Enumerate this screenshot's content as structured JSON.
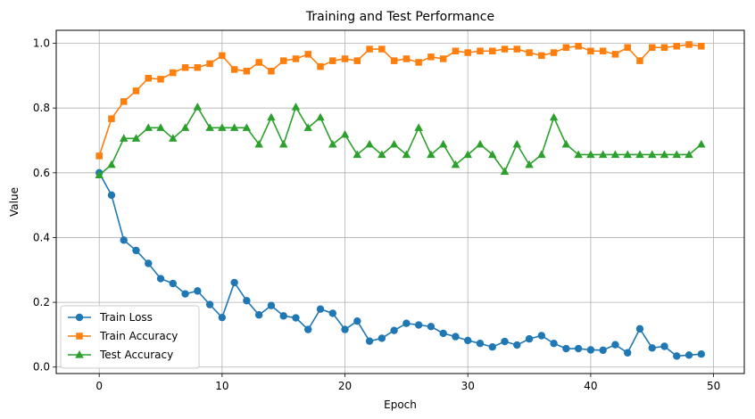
{
  "chart_data": {
    "type": "line",
    "title": "Training and Test Performance",
    "xlabel": "Epoch",
    "ylabel": "Value",
    "xlim": [
      -3.5,
      52.5
    ],
    "ylim": [
      -0.02,
      1.04
    ],
    "xticks": [
      0,
      10,
      20,
      30,
      40,
      50
    ],
    "yticks": [
      0.0,
      0.2,
      0.4,
      0.6,
      0.8,
      1.0
    ],
    "xtick_labels": [
      "0",
      "10",
      "20",
      "30",
      "40",
      "50"
    ],
    "ytick_labels": [
      "0.0",
      "0.2",
      "0.4",
      "0.6",
      "0.8",
      "1.0"
    ],
    "grid": true,
    "legend_position": "lower-left",
    "x": [
      0,
      1,
      2,
      3,
      4,
      5,
      6,
      7,
      8,
      9,
      10,
      11,
      12,
      13,
      14,
      15,
      16,
      17,
      18,
      19,
      20,
      21,
      22,
      23,
      24,
      25,
      26,
      27,
      28,
      29,
      30,
      31,
      32,
      33,
      34,
      35,
      36,
      37,
      38,
      39,
      40,
      41,
      42,
      43,
      44,
      45,
      46,
      47,
      48,
      49
    ],
    "series": [
      {
        "name": "Train Loss",
        "color": "#1f77b4",
        "marker": "circle",
        "values": [
          0.6,
          0.531,
          0.392,
          0.36,
          0.32,
          0.273,
          0.258,
          0.226,
          0.235,
          0.193,
          0.153,
          0.261,
          0.205,
          0.161,
          0.19,
          0.158,
          0.152,
          0.116,
          0.179,
          0.166,
          0.116,
          0.142,
          0.08,
          0.089,
          0.113,
          0.135,
          0.13,
          0.125,
          0.104,
          0.094,
          0.082,
          0.073,
          0.062,
          0.079,
          0.068,
          0.087,
          0.097,
          0.073,
          0.057,
          0.057,
          0.053,
          0.052,
          0.069,
          0.044,
          0.118,
          0.059,
          0.064,
          0.034,
          0.037,
          0.04
        ]
      },
      {
        "name": "Train Accuracy",
        "color": "#ff7f0e",
        "marker": "square",
        "values": [
          0.652,
          0.767,
          0.82,
          0.853,
          0.892,
          0.889,
          0.909,
          0.925,
          0.925,
          0.937,
          0.962,
          0.919,
          0.914,
          0.941,
          0.914,
          0.946,
          0.952,
          0.966,
          0.928,
          0.946,
          0.952,
          0.946,
          0.982,
          0.982,
          0.946,
          0.952,
          0.941,
          0.958,
          0.952,
          0.976,
          0.971,
          0.976,
          0.976,
          0.982,
          0.982,
          0.971,
          0.962,
          0.971,
          0.987,
          0.991,
          0.976,
          0.976,
          0.966,
          0.987,
          0.946,
          0.987,
          0.987,
          0.991,
          0.996,
          0.991
        ]
      },
      {
        "name": "Test Accuracy",
        "color": "#2ca02c",
        "marker": "triangle",
        "values": [
          0.593,
          0.625,
          0.706,
          0.706,
          0.739,
          0.739,
          0.706,
          0.739,
          0.803,
          0.739,
          0.739,
          0.739,
          0.739,
          0.688,
          0.771,
          0.688,
          0.803,
          0.739,
          0.771,
          0.688,
          0.718,
          0.656,
          0.688,
          0.656,
          0.688,
          0.656,
          0.739,
          0.656,
          0.688,
          0.625,
          0.656,
          0.688,
          0.656,
          0.604,
          0.688,
          0.625,
          0.656,
          0.771,
          0.688,
          0.656,
          0.656,
          0.656,
          0.656,
          0.656,
          0.656,
          0.656,
          0.656,
          0.656,
          0.656,
          0.688
        ]
      }
    ]
  }
}
